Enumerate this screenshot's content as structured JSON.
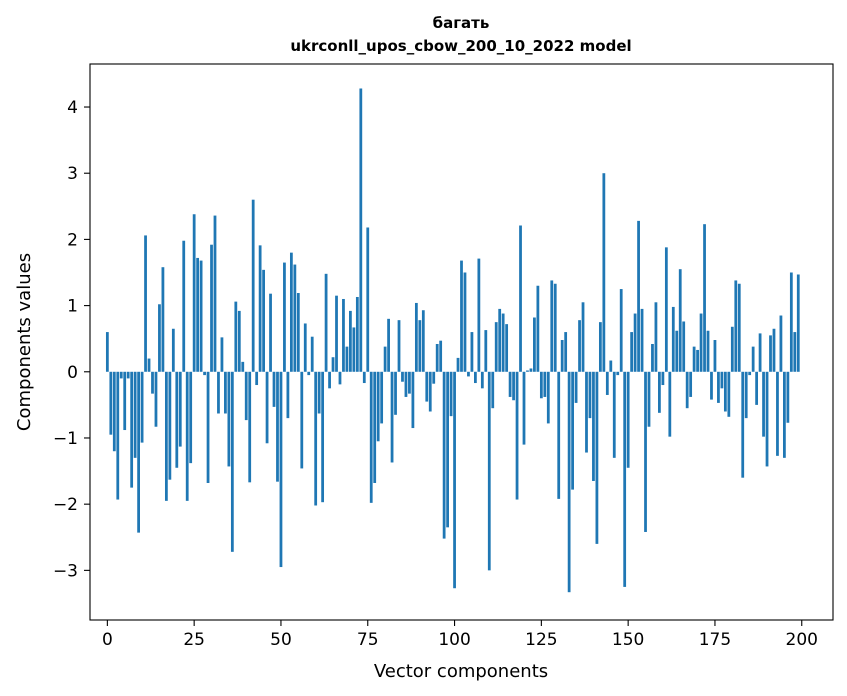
{
  "chart_data": {
    "type": "bar",
    "title": "багать",
    "subtitle": "ukrconll_upos_cbow_200_10_2022 model",
    "xlabel": "Vector components",
    "ylabel": "Components values",
    "xlim": [
      -5,
      209
    ],
    "ylim": [
      -3.75,
      4.65
    ],
    "xticks": [
      0,
      25,
      50,
      75,
      100,
      125,
      150,
      175,
      200
    ],
    "xtick_labels": [
      "0",
      "25",
      "50",
      "75",
      "100",
      "125",
      "150",
      "175",
      "200"
    ],
    "yticks": [
      -3,
      -2,
      -1,
      0,
      1,
      2,
      3,
      4
    ],
    "ytick_labels": [
      "−3",
      "−2",
      "−1",
      "0",
      "1",
      "2",
      "3",
      "4"
    ],
    "grid": false,
    "bar_color": "#1f77b4",
    "x": [
      0,
      1,
      2,
      3,
      4,
      5,
      6,
      7,
      8,
      9,
      10,
      11,
      12,
      13,
      14,
      15,
      16,
      17,
      18,
      19,
      20,
      21,
      22,
      23,
      24,
      25,
      26,
      27,
      28,
      29,
      30,
      31,
      32,
      33,
      34,
      35,
      36,
      37,
      38,
      39,
      40,
      41,
      42,
      43,
      44,
      45,
      46,
      47,
      48,
      49,
      50,
      51,
      52,
      53,
      54,
      55,
      56,
      57,
      58,
      59,
      60,
      61,
      62,
      63,
      64,
      65,
      66,
      67,
      68,
      69,
      70,
      71,
      72,
      73,
      74,
      75,
      76,
      77,
      78,
      79,
      80,
      81,
      82,
      83,
      84,
      85,
      86,
      87,
      88,
      89,
      90,
      91,
      92,
      93,
      94,
      95,
      96,
      97,
      98,
      99,
      100,
      101,
      102,
      103,
      104,
      105,
      106,
      107,
      108,
      109,
      110,
      111,
      112,
      113,
      114,
      115,
      116,
      117,
      118,
      119,
      120,
      121,
      122,
      123,
      124,
      125,
      126,
      127,
      128,
      129,
      130,
      131,
      132,
      133,
      134,
      135,
      136,
      137,
      138,
      139,
      140,
      141,
      142,
      143,
      144,
      145,
      146,
      147,
      148,
      149,
      150,
      151,
      152,
      153,
      154,
      155,
      156,
      157,
      158,
      159,
      160,
      161,
      162,
      163,
      164,
      165,
      166,
      167,
      168,
      169,
      170,
      171,
      172,
      173,
      174,
      175,
      176,
      177,
      178,
      179,
      180,
      181,
      182,
      183,
      184,
      185,
      186,
      187,
      188,
      189,
      190,
      191,
      192,
      193,
      194,
      195,
      196,
      197,
      198,
      199
    ],
    "values": [
      0.6,
      -0.95,
      -1.2,
      -1.93,
      -0.1,
      -0.88,
      -0.1,
      -1.75,
      -1.3,
      -2.43,
      -1.07,
      2.06,
      0.2,
      -0.33,
      -0.83,
      1.02,
      1.58,
      -1.95,
      -1.63,
      0.65,
      -1.45,
      -1.13,
      1.98,
      -1.95,
      -1.38,
      2.38,
      1.72,
      1.68,
      -0.05,
      -1.68,
      1.92,
      2.36,
      -0.63,
      0.52,
      -0.63,
      -1.43,
      -2.72,
      1.06,
      0.92,
      0.15,
      -0.73,
      -1.67,
      2.6,
      -0.2,
      1.91,
      1.54,
      -1.08,
      1.18,
      -0.53,
      -1.66,
      -2.95,
      1.65,
      -0.7,
      1.8,
      1.62,
      1.19,
      -1.46,
      0.73,
      -0.05,
      0.53,
      -2.02,
      -0.63,
      -1.97,
      1.48,
      -0.25,
      0.22,
      1.15,
      -0.19,
      1.1,
      0.38,
      0.92,
      0.67,
      1.13,
      4.28,
      -0.17,
      2.18,
      -1.98,
      -1.68,
      -1.05,
      -0.78,
      0.38,
      0.8,
      -1.37,
      -0.65,
      0.78,
      -0.15,
      -0.38,
      -0.33,
      -0.85,
      1.04,
      0.78,
      0.93,
      -0.45,
      -0.6,
      -0.18,
      0.42,
      0.47,
      -2.52,
      -2.35,
      -0.67,
      -3.27,
      0.21,
      1.68,
      1.5,
      -0.07,
      0.6,
      -0.17,
      1.71,
      -0.25,
      0.63,
      -3.0,
      -0.55,
      0.75,
      0.95,
      0.88,
      0.72,
      -0.38,
      -0.43,
      -1.93,
      2.21,
      -1.1,
      0.02,
      0.05,
      0.82,
      1.3,
      -0.4,
      -0.38,
      -0.78,
      1.38,
      1.33,
      -1.92,
      0.48,
      0.6,
      -3.33,
      -1.78,
      -0.47,
      0.78,
      1.05,
      -1.22,
      -0.7,
      -1.65,
      -2.6,
      0.75,
      3.0,
      -0.35,
      0.17,
      -1.3,
      -0.05,
      1.25,
      -3.25,
      -1.45,
      0.6,
      0.88,
      2.28,
      0.95,
      -2.42,
      -0.83,
      0.42,
      1.05,
      -0.62,
      -0.2,
      1.88,
      -0.98,
      0.98,
      0.62,
      1.55,
      0.76,
      -0.55,
      -0.38,
      0.38,
      0.33,
      0.88,
      2.23,
      0.62,
      -0.42,
      0.48,
      -0.47,
      -0.25,
      -0.6,
      -0.68,
      0.68,
      1.38,
      1.33,
      -1.6,
      -0.7,
      -0.05,
      0.38,
      -0.5,
      0.58,
      -0.98,
      -1.43,
      0.55,
      0.65,
      -1.27,
      0.85,
      -1.3,
      -0.77,
      1.5,
      0.6,
      1.47
    ]
  }
}
